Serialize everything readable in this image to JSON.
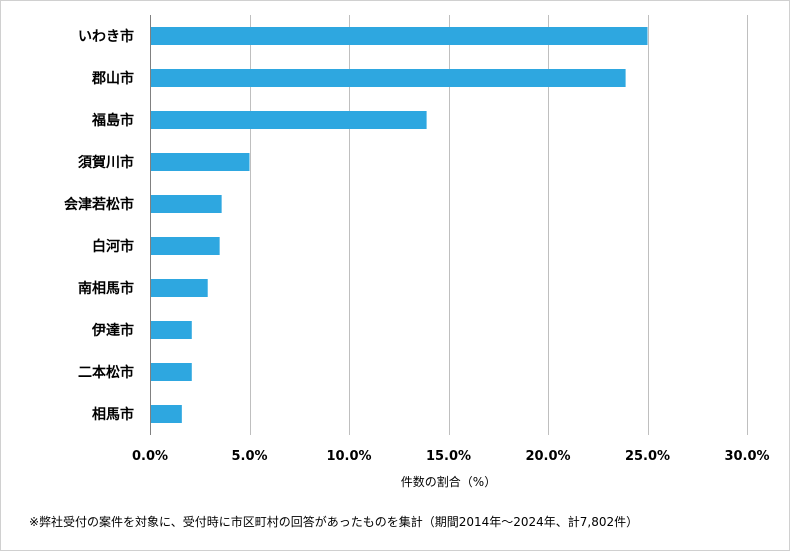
{
  "chart_data": {
    "type": "bar",
    "orientation": "horizontal",
    "categories": [
      "いわき市",
      "郡山市",
      "福島市",
      "須賀川市",
      "会津若松市",
      "白河市",
      "南相馬市",
      "伊達市",
      "二本松市",
      "相馬市"
    ],
    "values": [
      25.0,
      23.9,
      13.9,
      5.0,
      3.6,
      3.5,
      2.9,
      2.1,
      2.1,
      1.6
    ],
    "xlabel": "件数の割合（%）",
    "ylabel": "",
    "xlim": [
      0,
      30
    ],
    "xticks": [
      "0.0%",
      "5.0%",
      "10.0%",
      "15.0%",
      "20.0%",
      "25.0%",
      "30.0%"
    ],
    "grid": "vertical",
    "bar_color": "#2EA7E0"
  },
  "footnote": "※弊社受付の案件を対象に、受付時に市区町村の回答があったものを集計（期間2014年～2024年、計7,802件）"
}
